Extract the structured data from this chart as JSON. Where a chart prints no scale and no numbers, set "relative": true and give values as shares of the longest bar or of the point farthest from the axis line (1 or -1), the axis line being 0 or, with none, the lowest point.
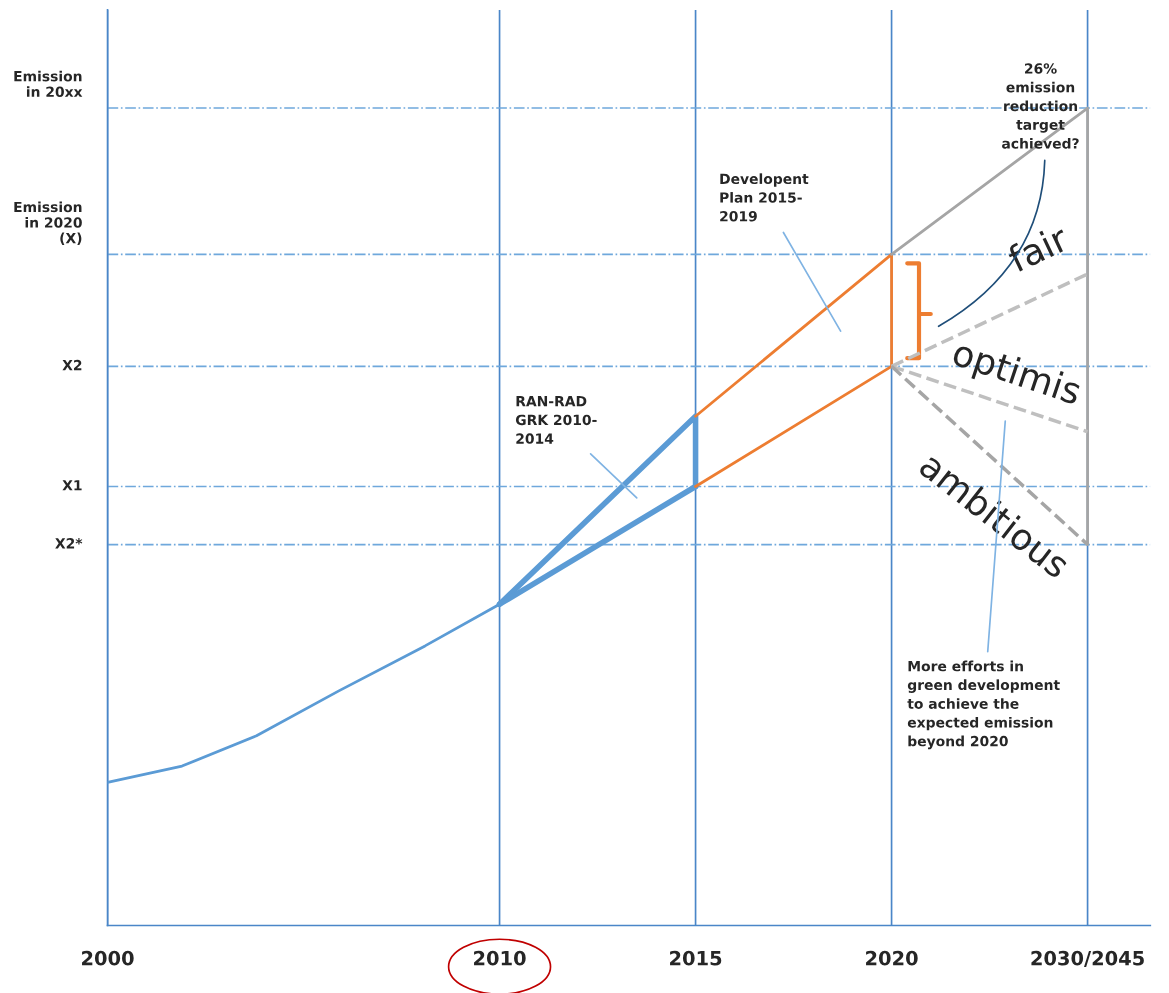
{
  "chart_data": {
    "type": "line",
    "relative": true,
    "grid": "x",
    "xlim": [
      2000,
      2026.6
    ],
    "xticks": [
      2000,
      2010,
      2015,
      2020,
      {
        "value": 2025,
        "label": "2030/2045"
      }
    ],
    "series": [
      {
        "color": "#5b9bd5",
        "x": [
          2000,
          2001.9,
          2003.8,
          2005.9,
          2008.1,
          2010
        ],
        "values": [
          0.175,
          0.195,
          0.232,
          0.287,
          0.342,
          0.393
        ]
      },
      {
        "color": "#5b9bd5",
        "x": [
          2010,
          2015,
          2015
        ],
        "values": [
          0.393,
          0.623,
          0.537
        ]
      },
      {
        "color": "#5b9bd5",
        "x": [
          2010,
          2015
        ],
        "values": [
          0.393,
          0.537
        ]
      },
      {
        "color": "#ed7d31",
        "x": [
          2015,
          2020,
          2020,
          2015
        ],
        "values": [
          0.623,
          0.821,
          0.684,
          0.537
        ]
      },
      {
        "color": "#a5a5a5",
        "x": [
          2020,
          2025,
          2025
        ],
        "values": [
          0.821,
          1.0,
          0.466
        ]
      },
      {
        "name": "fair",
        "color": "#bfbfbf",
        "line_style": "dashed",
        "x": [
          2020,
          2025
        ],
        "values": [
          0.684,
          0.797
        ]
      },
      {
        "name": "optimis",
        "color": "#bfbfbf",
        "line_style": "dashed",
        "x": [
          2020,
          2025
        ],
        "values": [
          0.684,
          0.604
        ]
      },
      {
        "name": "ambitious",
        "color": "#a5a5a5",
        "line_style": "dashed",
        "x": [
          2020,
          2025
        ],
        "values": [
          0.684,
          0.466
        ]
      }
    ],
    "ref_lines": [
      {
        "axis": "y",
        "value": 1.0,
        "label": "Emission\nin 20xx",
        "color": "#6fa8dc",
        "line_style": "dashdot"
      },
      {
        "axis": "y",
        "value": 0.821,
        "label": "Emission\nin 2020\n(X)",
        "color": "#6fa8dc",
        "line_style": "dashdot"
      },
      {
        "axis": "y",
        "value": 0.684,
        "label": "X2",
        "color": "#6fa8dc",
        "line_style": "dashdot"
      },
      {
        "axis": "y",
        "value": 0.537,
        "label": "X1",
        "color": "#6fa8dc",
        "line_style": "dashdot"
      },
      {
        "axis": "y",
        "value": 0.466,
        "label": "X2*",
        "color": "#6fa8dc",
        "line_style": "dashdot"
      }
    ],
    "annotations": [
      "RAN-RAD\nGRK 2010-\n2014",
      "Developent\nPlan 2015-\n2019",
      "26%\nemission\nreduction\ntarget\nachieved?",
      "More efforts in\ngreen development\nto achieve the\nexpected emission\nbeyond 2020"
    ]
  }
}
